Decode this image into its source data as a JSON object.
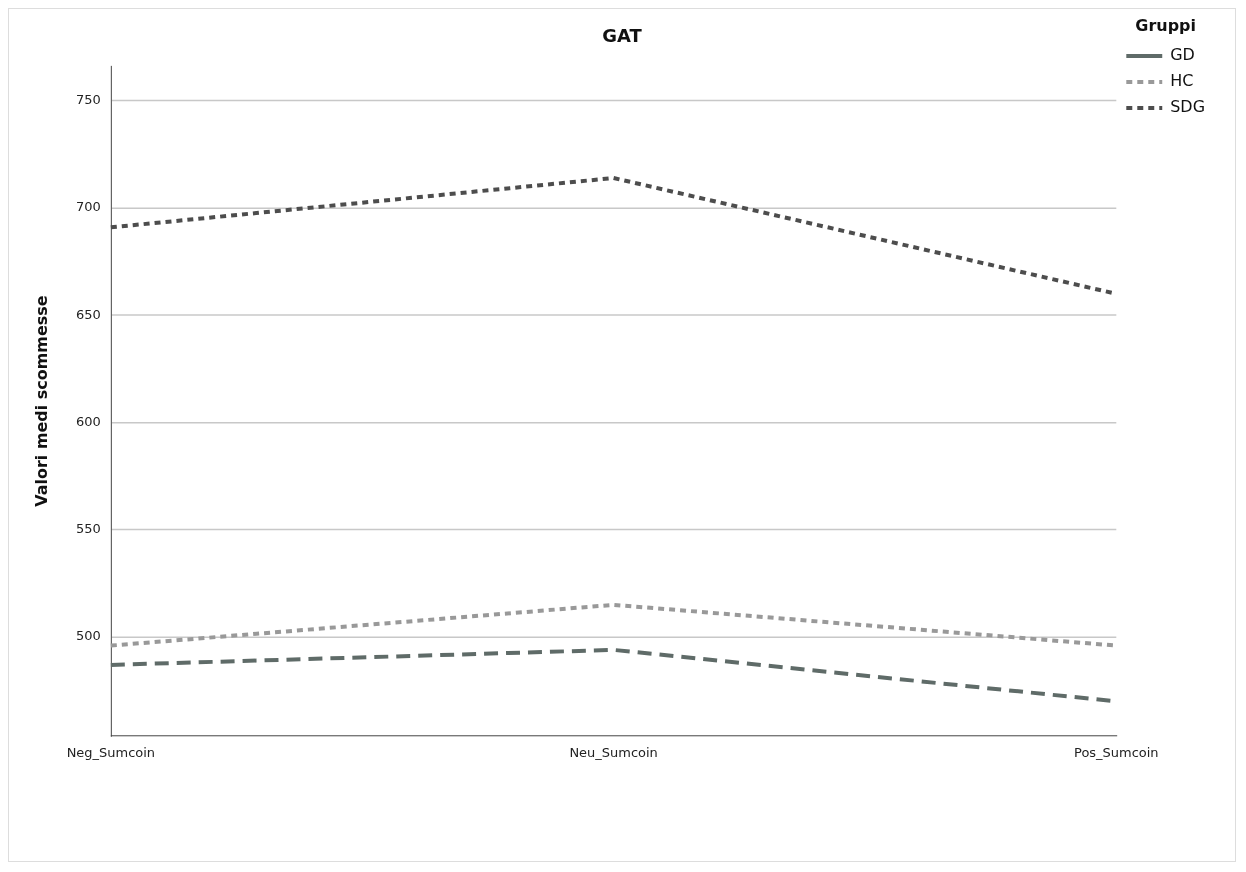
{
  "chart_data": {
    "type": "line",
    "title": "GAT",
    "ylabel": "Valori medi scommesse",
    "legend_title": "Gruppi",
    "categories": [
      "Neg_Sumcoin",
      "Neu_Sumcoin",
      "Pos_Sumcoin"
    ],
    "series": [
      {
        "name": "GD",
        "color": "#5f6b68",
        "line_style": "dashed",
        "values": [
          487,
          494,
          470
        ]
      },
      {
        "name": "HC",
        "color": "#999999",
        "line_style": "dotted",
        "values": [
          496,
          515,
          496
        ]
      },
      {
        "name": "SDG",
        "color": "#4d4d4d",
        "line_style": "dotted",
        "values": [
          691,
          714,
          660
        ]
      }
    ],
    "ylim": [
      454,
      766
    ],
    "yticks": [
      500,
      550,
      600,
      650,
      700,
      750
    ],
    "grid": "y",
    "legend": "top right",
    "marker": "none"
  }
}
